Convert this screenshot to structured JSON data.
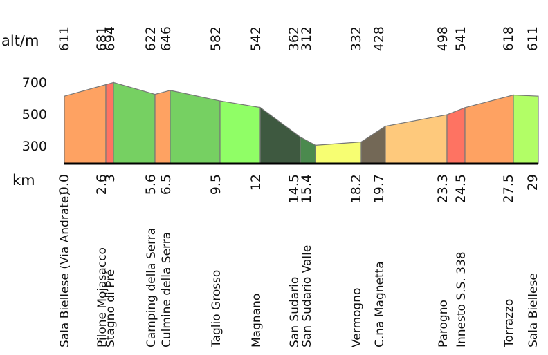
{
  "chart_data": {
    "type": "area",
    "title": "",
    "ylabel": "alt/m",
    "xlabel": "km",
    "ylim": [
      200,
      740
    ],
    "yticks": [
      300,
      500,
      700
    ],
    "points": [
      {
        "km": 0.0,
        "km_label": "0.0",
        "alt": 611,
        "name": "Sala Biellese (Via Andrate)"
      },
      {
        "km": 2.6,
        "km_label": "2.6",
        "alt": 681,
        "name": "Pilone Mojasacco"
      },
      {
        "km": 3,
        "km_label": "3",
        "alt": 694,
        "name": "Stagno di Pré"
      },
      {
        "km": 5.6,
        "km_label": "5.6",
        "alt": 622,
        "name": "Camping della Serra"
      },
      {
        "km": 6.5,
        "km_label": "6.5",
        "alt": 646,
        "name": "Culmine della Serra"
      },
      {
        "km": 9.5,
        "km_label": "9.5",
        "alt": 582,
        "name": "Taglio Grosso"
      },
      {
        "km": 12,
        "km_label": "12",
        "alt": 542,
        "name": "Magnano"
      },
      {
        "km": 14.5,
        "km_label": "14.5",
        "alt": 362,
        "name": "San Sudario"
      },
      {
        "km": 15.4,
        "km_label": "15.4",
        "alt": 312,
        "name": "San Sudario Valle"
      },
      {
        "km": 18.2,
        "km_label": "18.2",
        "alt": 332,
        "name": "Vermogno"
      },
      {
        "km": 19.7,
        "km_label": "19.7",
        "alt": 428,
        "name": "C.na Magnetta"
      },
      {
        "km": 23.3,
        "km_label": "23.3",
        "alt": 498,
        "name": "Parogno"
      },
      {
        "km": 24.5,
        "km_label": "24.5",
        "alt": 541,
        "name": "Innesto S.S. 338"
      },
      {
        "km": 27.5,
        "km_label": "27.5",
        "alt": 618,
        "name": "Torrazzo"
      },
      {
        "km": 29,
        "km_label": "29",
        "alt": 611,
        "name": "Sala Biellese"
      }
    ],
    "segment_colors": [
      "#fea262",
      "#fe7362",
      "#76d062",
      "#fea262",
      "#76d062",
      "#90fe66",
      "#3e5940",
      "#4b8a4e",
      "#f7fe72",
      "#736856",
      "#fec97c",
      "#fe7362",
      "#fea262",
      "#b2fe66"
    ]
  }
}
